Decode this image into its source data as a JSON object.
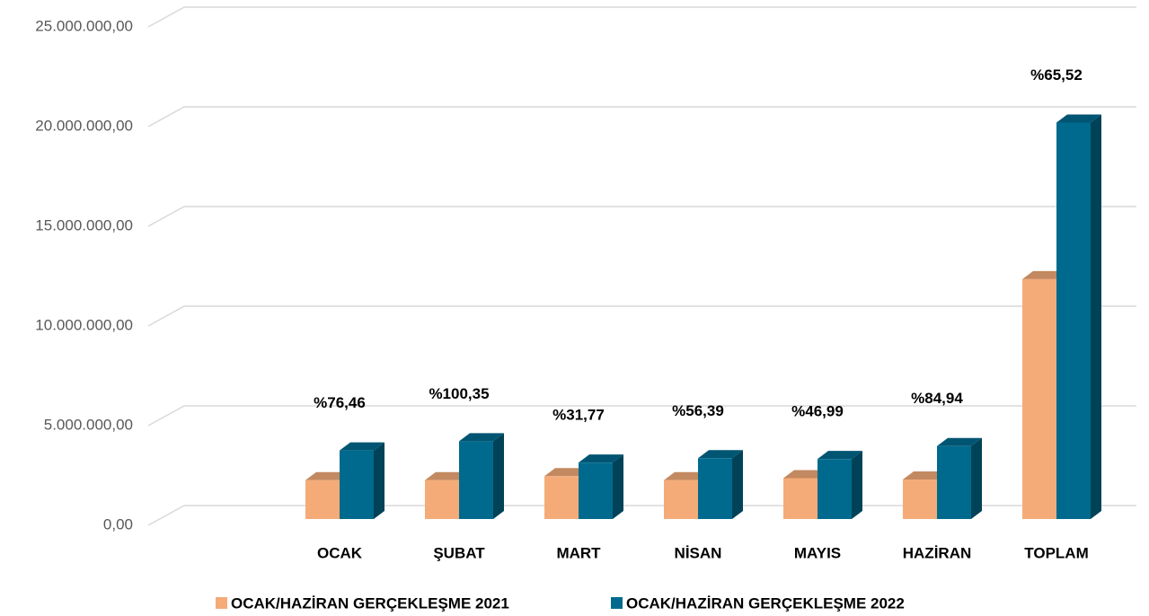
{
  "chart_data": {
    "type": "bar3d",
    "categories": [
      null,
      "OCAK",
      "ŞUBAT",
      "MART",
      "NİSAN",
      "MAYIS",
      "HAZİRAN",
      "TOPLAM"
    ],
    "series": [
      {
        "name": "OCAK/HAZİRAN GERÇEKLEŞME 2021",
        "color": "#f4ab78",
        "values": [
          null,
          1950000,
          1950000,
          2150000,
          1950000,
          2050000,
          1980000,
          12030000
        ]
      },
      {
        "name": "OCAK/HAZİRAN GERÇEKLEŞME 2022",
        "color": "#006a8e",
        "values": [
          null,
          3440000,
          3900000,
          2830000,
          3050000,
          3010000,
          3660000,
          19890000
        ]
      }
    ],
    "annotations": [
      null,
      "%76,46",
      "%100,35",
      "%31,77",
      "%56,39",
      "%46,99",
      "%84,94",
      "%65,52"
    ],
    "ylim": [
      0,
      25000000
    ],
    "yticks": [
      {
        "value": 0,
        "label": "0,00"
      },
      {
        "value": 5000000,
        "label": "5.000.000,00"
      },
      {
        "value": 10000000,
        "label": "10.000.000,00"
      },
      {
        "value": 15000000,
        "label": "15.000.000,00"
      },
      {
        "value": 20000000,
        "label": "20.000.000,00"
      },
      {
        "value": 25000000,
        "label": "25.000.000,00"
      }
    ],
    "grid": true,
    "legend": "bottom"
  }
}
